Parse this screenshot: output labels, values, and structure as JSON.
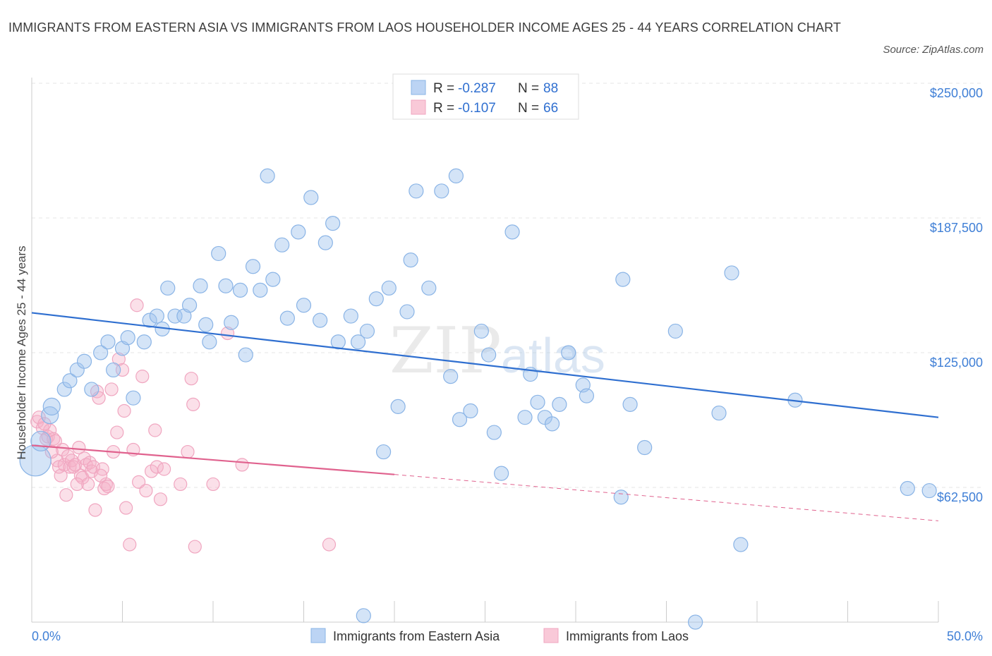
{
  "chart_data": {
    "type": "scatter",
    "title": "IMMIGRANTS FROM EASTERN ASIA VS IMMIGRANTS FROM LAOS HOUSEHOLDER INCOME AGES 25 - 44 YEARS CORRELATION CHART",
    "source": "Source: ZipAtlas.com",
    "ylabel": "Householder Income Ages 25 - 44 years",
    "xlim": [
      0,
      50
    ],
    "ylim": [
      0,
      250000
    ],
    "x_ticks": [
      "0.0%",
      "50.0%"
    ],
    "y_ticks": [
      {
        "value": 62500,
        "label": "$62,500"
      },
      {
        "value": 125000,
        "label": "$125,000"
      },
      {
        "value": 187500,
        "label": "$187,500"
      },
      {
        "value": 250000,
        "label": "$250,000"
      }
    ],
    "watermark": {
      "zip": "ZIP",
      "atlas": "atlas"
    },
    "legend": [
      {
        "r_label": "R =",
        "r_value": "-0.287",
        "n_label": "N =",
        "n_value": "88"
      },
      {
        "r_label": "R =",
        "r_value": "-0.107",
        "n_label": "N =",
        "n_value": "66"
      }
    ],
    "series": [
      {
        "name": "Immigrants from Eastern Asia",
        "color": "#8ab4e6",
        "line_color": "#2f6fd0",
        "trend": {
          "x0": 0,
          "y0": 143500,
          "x1": 50,
          "y1": 95000
        },
        "points": [
          [
            0.2,
            75000,
            22
          ],
          [
            0.5,
            84000,
            14
          ],
          [
            1.0,
            96000,
            12
          ],
          [
            1.1,
            100000,
            12
          ],
          [
            1.8,
            108000,
            10
          ],
          [
            2.1,
            112000,
            10
          ],
          [
            2.5,
            117000,
            10
          ],
          [
            2.9,
            121000,
            10
          ],
          [
            3.3,
            108000,
            10
          ],
          [
            3.8,
            125000,
            10
          ],
          [
            4.2,
            130000,
            10
          ],
          [
            4.5,
            117000,
            10
          ],
          [
            5.0,
            127000,
            10
          ],
          [
            5.3,
            132000,
            10
          ],
          [
            5.6,
            104000,
            10
          ],
          [
            6.2,
            130000,
            10
          ],
          [
            6.5,
            140000,
            10
          ],
          [
            6.9,
            142000,
            10
          ],
          [
            7.2,
            136000,
            10
          ],
          [
            7.5,
            155000,
            10
          ],
          [
            7.9,
            142000,
            10
          ],
          [
            8.4,
            142000,
            10
          ],
          [
            8.7,
            147000,
            10
          ],
          [
            9.3,
            156000,
            10
          ],
          [
            9.6,
            138000,
            10
          ],
          [
            9.8,
            130000,
            10
          ],
          [
            10.3,
            171000,
            10
          ],
          [
            10.7,
            156000,
            10
          ],
          [
            11.0,
            139000,
            10
          ],
          [
            11.5,
            154000,
            10
          ],
          [
            11.8,
            124000,
            10
          ],
          [
            12.2,
            165000,
            10
          ],
          [
            12.6,
            154000,
            10
          ],
          [
            13.0,
            207000,
            10
          ],
          [
            13.3,
            159000,
            10
          ],
          [
            13.8,
            175000,
            10
          ],
          [
            14.1,
            141000,
            10
          ],
          [
            14.7,
            181000,
            10
          ],
          [
            15.0,
            147000,
            10
          ],
          [
            15.4,
            197000,
            10
          ],
          [
            15.9,
            140000,
            10
          ],
          [
            16.2,
            176000,
            10
          ],
          [
            16.6,
            185000,
            10
          ],
          [
            16.9,
            130000,
            10
          ],
          [
            17.6,
            142000,
            10
          ],
          [
            18.0,
            130000,
            10
          ],
          [
            18.5,
            135000,
            10
          ],
          [
            19.0,
            150000,
            10
          ],
          [
            19.4,
            79000,
            10
          ],
          [
            19.7,
            155000,
            10
          ],
          [
            20.2,
            100000,
            10
          ],
          [
            20.7,
            144000,
            10
          ],
          [
            20.9,
            168000,
            10
          ],
          [
            21.2,
            200000,
            10
          ],
          [
            21.9,
            155000,
            10
          ],
          [
            22.6,
            200000,
            10
          ],
          [
            23.1,
            114000,
            10
          ],
          [
            23.4,
            207000,
            10
          ],
          [
            23.6,
            94000,
            10
          ],
          [
            24.2,
            98000,
            10
          ],
          [
            24.8,
            135000,
            10
          ],
          [
            25.2,
            124000,
            10
          ],
          [
            25.5,
            88000,
            10
          ],
          [
            25.9,
            69000,
            10
          ],
          [
            26.5,
            181000,
            10
          ],
          [
            27.2,
            95000,
            10
          ],
          [
            27.5,
            115000,
            10
          ],
          [
            27.9,
            102000,
            10
          ],
          [
            28.3,
            95000,
            10
          ],
          [
            28.7,
            92000,
            10
          ],
          [
            29.1,
            101000,
            10
          ],
          [
            29.6,
            125000,
            10
          ],
          [
            30.4,
            110000,
            10
          ],
          [
            30.6,
            105000,
            10
          ],
          [
            32.5,
            58000,
            10
          ],
          [
            32.6,
            159000,
            10
          ],
          [
            33.0,
            101000,
            10
          ],
          [
            33.8,
            81000,
            10
          ],
          [
            35.5,
            135000,
            10
          ],
          [
            36.6,
            0,
            10
          ],
          [
            37.9,
            97000,
            10
          ],
          [
            38.6,
            162000,
            10
          ],
          [
            39.1,
            36000,
            10
          ],
          [
            42.1,
            103000,
            10
          ],
          [
            48.3,
            62000,
            10
          ],
          [
            49.5,
            61000,
            10
          ],
          [
            41.0,
            192000,
            0
          ],
          [
            18.3,
            3000,
            10
          ]
        ]
      },
      {
        "name": "Immigrants from Laos",
        "color": "#f0a6c0",
        "line_color": "#e0628e",
        "trend": {
          "x0": 0,
          "y0": 82000,
          "x1": 20,
          "y1": 68500,
          "dash_x1": 50,
          "dash_y1": 47000
        },
        "points": [
          [
            0.3,
            93000,
            9
          ],
          [
            0.4,
            95000,
            9
          ],
          [
            0.6,
            90000,
            9
          ],
          [
            0.8,
            85000,
            9
          ],
          [
            0.9,
            86000,
            9
          ],
          [
            1.0,
            89000,
            9
          ],
          [
            1.2,
            85000,
            9
          ],
          [
            1.3,
            84000,
            9
          ],
          [
            1.4,
            75000,
            9
          ],
          [
            1.5,
            72000,
            9
          ],
          [
            1.6,
            68000,
            9
          ],
          [
            1.7,
            80000,
            9
          ],
          [
            1.8,
            73000,
            9
          ],
          [
            1.9,
            59000,
            9
          ],
          [
            2.0,
            77000,
            9
          ],
          [
            2.1,
            72000,
            9
          ],
          [
            2.2,
            75000,
            9
          ],
          [
            2.3,
            72000,
            9
          ],
          [
            2.4,
            73000,
            9
          ],
          [
            2.6,
            81000,
            9
          ],
          [
            2.7,
            68000,
            9
          ],
          [
            2.8,
            67000,
            9
          ],
          [
            2.9,
            76000,
            9
          ],
          [
            3.0,
            73000,
            9
          ],
          [
            3.1,
            64000,
            9
          ],
          [
            3.2,
            74000,
            9
          ],
          [
            3.3,
            70000,
            9
          ],
          [
            3.4,
            72000,
            9
          ],
          [
            3.5,
            52000,
            9
          ],
          [
            3.6,
            107000,
            9
          ],
          [
            3.7,
            104000,
            9
          ],
          [
            3.9,
            71000,
            9
          ],
          [
            4.0,
            62000,
            9
          ],
          [
            4.1,
            64000,
            9
          ],
          [
            4.2,
            63000,
            9
          ],
          [
            4.4,
            108000,
            9
          ],
          [
            4.5,
            79000,
            9
          ],
          [
            4.7,
            88000,
            9
          ],
          [
            4.8,
            122000,
            9
          ],
          [
            5.0,
            117000,
            9
          ],
          [
            5.1,
            98000,
            9
          ],
          [
            5.2,
            53000,
            9
          ],
          [
            5.4,
            36000,
            9
          ],
          [
            5.6,
            80000,
            9
          ],
          [
            5.8,
            147000,
            9
          ],
          [
            5.9,
            65000,
            9
          ],
          [
            6.1,
            114000,
            9
          ],
          [
            6.3,
            61000,
            9
          ],
          [
            6.6,
            70000,
            9
          ],
          [
            6.8,
            89000,
            9
          ],
          [
            6.9,
            72000,
            9
          ],
          [
            7.1,
            57000,
            9
          ],
          [
            7.3,
            71000,
            9
          ],
          [
            8.2,
            64000,
            9
          ],
          [
            8.6,
            79000,
            9
          ],
          [
            8.8,
            113000,
            9
          ],
          [
            8.9,
            101000,
            9
          ],
          [
            9.0,
            35000,
            9
          ],
          [
            10.0,
            64000,
            9
          ],
          [
            10.8,
            134000,
            9
          ],
          [
            11.6,
            73000,
            9
          ],
          [
            16.4,
            36000,
            9
          ],
          [
            0.7,
            92000,
            9
          ],
          [
            1.1,
            79000,
            9
          ],
          [
            2.5,
            64000,
            9
          ],
          [
            3.8,
            68000,
            9
          ]
        ]
      }
    ]
  }
}
